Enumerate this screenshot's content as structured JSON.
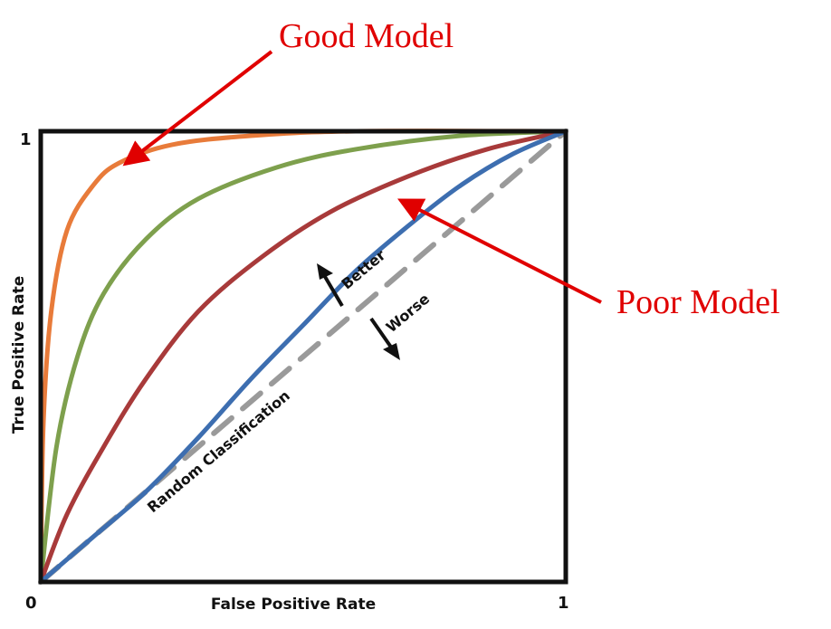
{
  "chart_data": {
    "type": "line",
    "xlabel": "False Positive Rate",
    "ylabel": "True Positive Rate",
    "xlim": [
      0,
      1
    ],
    "ylim": [
      0,
      1
    ],
    "x_ticks": [
      "0",
      "1"
    ],
    "y_ticks": [
      "1"
    ],
    "grid": false,
    "series": [
      {
        "color": "#e87b3a",
        "points": [
          [
            0,
            0
          ],
          [
            0.005,
            0.35
          ],
          [
            0.02,
            0.6
          ],
          [
            0.05,
            0.78
          ],
          [
            0.1,
            0.88
          ],
          [
            0.15,
            0.93
          ],
          [
            0.25,
            0.97
          ],
          [
            0.4,
            0.99
          ],
          [
            0.6,
            1.0
          ],
          [
            1,
            1
          ]
        ]
      },
      {
        "color": "#7ea04d",
        "points": [
          [
            0,
            0
          ],
          [
            0.03,
            0.3
          ],
          [
            0.07,
            0.5
          ],
          [
            0.12,
            0.64
          ],
          [
            0.2,
            0.76
          ],
          [
            0.3,
            0.85
          ],
          [
            0.45,
            0.92
          ],
          [
            0.6,
            0.96
          ],
          [
            0.8,
            0.99
          ],
          [
            1,
            1
          ]
        ]
      },
      {
        "color": "#a83a3a",
        "points": [
          [
            0,
            0
          ],
          [
            0.05,
            0.15
          ],
          [
            0.12,
            0.3
          ],
          [
            0.2,
            0.45
          ],
          [
            0.3,
            0.6
          ],
          [
            0.42,
            0.72
          ],
          [
            0.55,
            0.82
          ],
          [
            0.7,
            0.9
          ],
          [
            0.85,
            0.96
          ],
          [
            1,
            1
          ]
        ]
      },
      {
        "color": "#3d6eb0",
        "points": [
          [
            0,
            0
          ],
          [
            0.1,
            0.1
          ],
          [
            0.2,
            0.2
          ],
          [
            0.3,
            0.32
          ],
          [
            0.4,
            0.45
          ],
          [
            0.5,
            0.57
          ],
          [
            0.6,
            0.69
          ],
          [
            0.7,
            0.79
          ],
          [
            0.8,
            0.88
          ],
          [
            0.9,
            0.95
          ],
          [
            1,
            1
          ]
        ]
      },
      {
        "color": "#9a9a9a",
        "dashed": true,
        "points": [
          [
            0,
            0
          ],
          [
            1,
            1
          ]
        ]
      }
    ],
    "annotations": [
      {
        "text": "Random Classification",
        "color": "#111111"
      },
      {
        "text": "Better",
        "color": "#111111"
      },
      {
        "text": "Worse",
        "color": "#111111"
      },
      {
        "text": "Good Model",
        "color": "#e00000"
      },
      {
        "text": "Poor Model",
        "color": "#e00000"
      }
    ]
  }
}
